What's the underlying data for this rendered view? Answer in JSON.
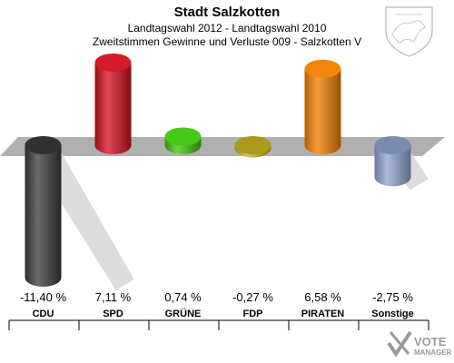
{
  "chart_data": {
    "type": "bar",
    "title": "Stadt Salzkotten",
    "subtitle_1": "Landtagswahl 2012 - Landtagswahl 2010",
    "subtitle_2": "Zweitstimmen Gewinne und Verluste 009 - Salzkotten V",
    "categories": [
      "CDU",
      "SPD",
      "GRÜNE",
      "FDP",
      "PIRATEN",
      "Sonstige"
    ],
    "values": [
      -11.4,
      7.11,
      0.74,
      -0.27,
      6.58,
      -2.75
    ],
    "value_labels": [
      "-11,40 %",
      "7,11 %",
      "0,74 %",
      "-0,27 %",
      "6,58 %",
      "-2,75 %"
    ],
    "colors": [
      "#3a3a3a",
      "#d20f1e",
      "#3dc40a",
      "#c8b41e",
      "#f27d00",
      "#8fa3d1"
    ]
  },
  "watermark": {
    "line1": "VOTE",
    "line2": "MANAGER",
    "icon": "crest-icon"
  }
}
